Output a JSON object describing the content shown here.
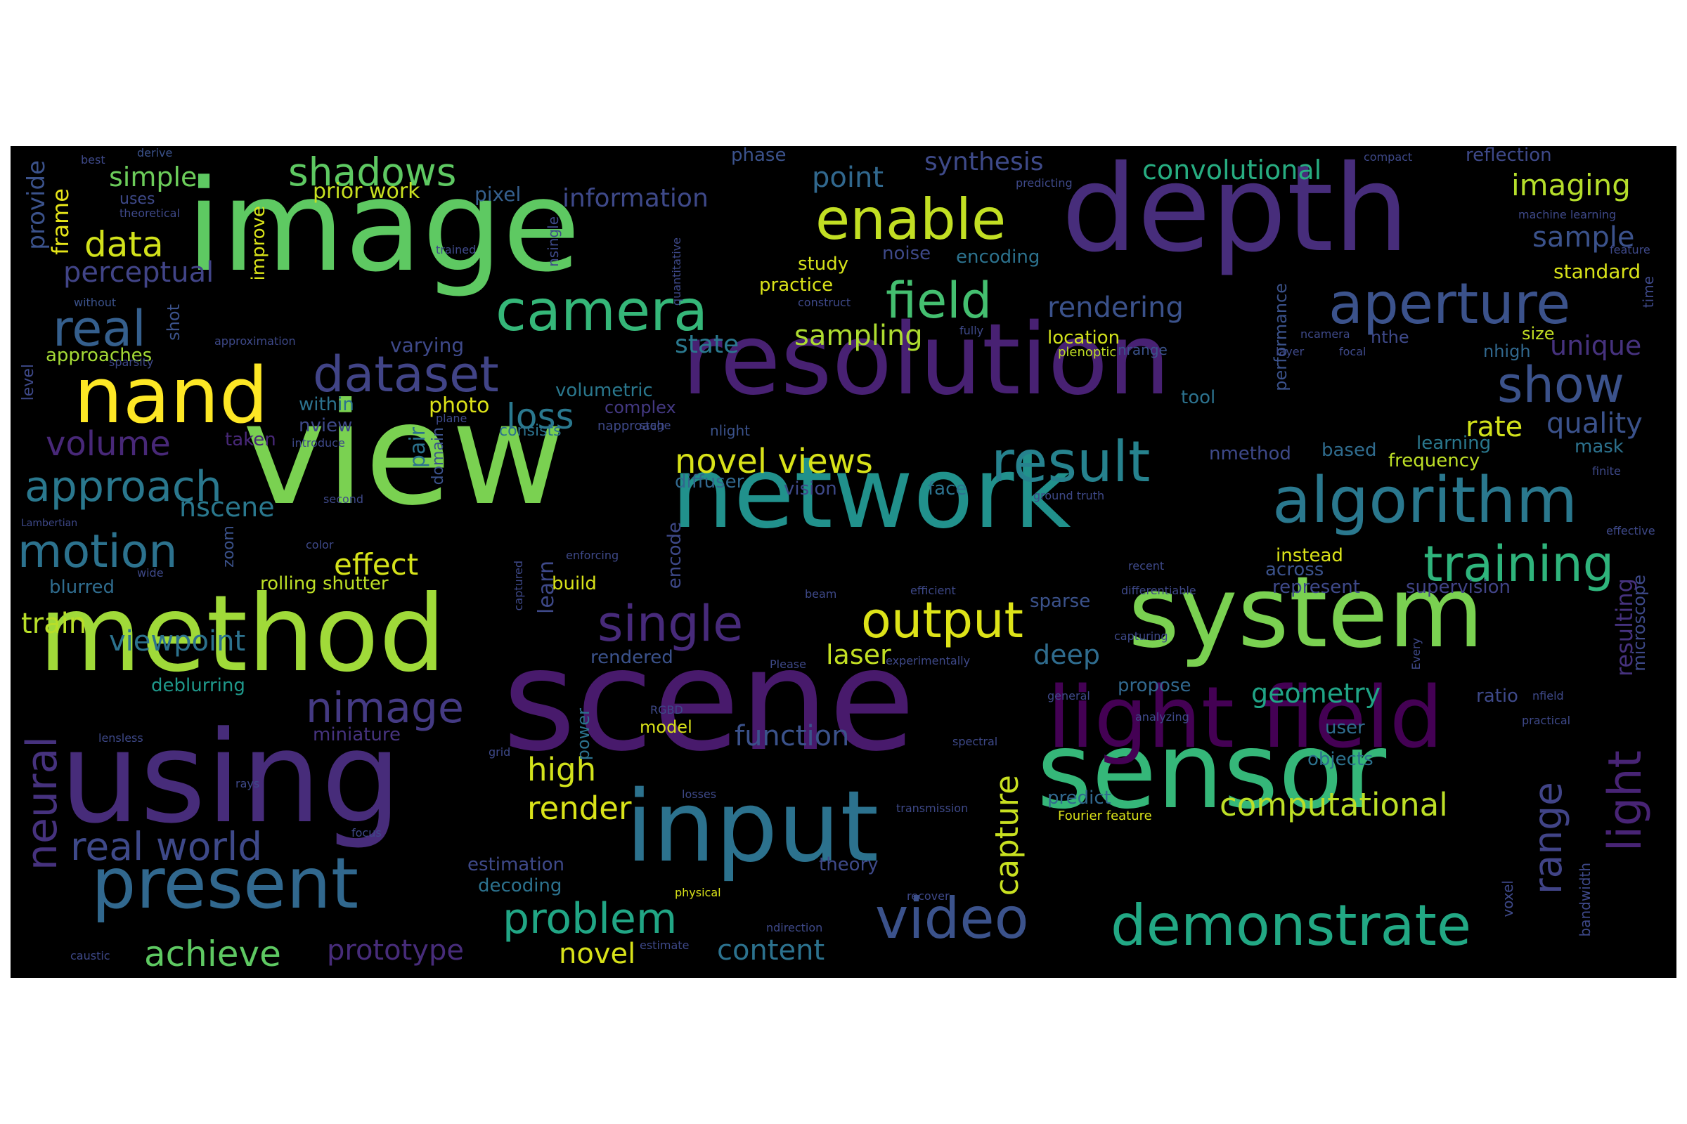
{
  "background": "#000000",
  "words": [
    {
      "text": "image",
      "color": "#5ec962"
    },
    {
      "text": "view",
      "color": "#7ad151"
    },
    {
      "text": "depth",
      "color": "#472d7b"
    },
    {
      "text": "resolution",
      "color": "#482173"
    },
    {
      "text": "network",
      "color": "#21918c"
    },
    {
      "text": "scene",
      "color": "#481a6c"
    },
    {
      "text": "using",
      "color": "#472c7a"
    },
    {
      "text": "method",
      "color": "#a0da39"
    },
    {
      "text": "system",
      "color": "#7ad151"
    },
    {
      "text": "sensor",
      "color": "#35b779"
    },
    {
      "text": "input",
      "color": "#2c728e"
    },
    {
      "text": "light field",
      "color": "#440154"
    },
    {
      "text": "nand",
      "color": "#fde725"
    },
    {
      "text": "camera",
      "color": "#35b779"
    },
    {
      "text": "present",
      "color": "#31688e"
    },
    {
      "text": "algorithm",
      "color": "#2a788e"
    },
    {
      "text": "aperture",
      "color": "#3b528b"
    },
    {
      "text": "enable",
      "color": "#c2df23"
    },
    {
      "text": "video",
      "color": "#3b528b"
    },
    {
      "text": "demonstrate",
      "color": "#22a884"
    },
    {
      "text": "training",
      "color": "#2fb47c"
    },
    {
      "text": "result",
      "color": "#26828e"
    },
    {
      "text": "field",
      "color": "#44bf70"
    },
    {
      "text": "output",
      "color": "#dde318"
    },
    {
      "text": "single",
      "color": "#472a7a"
    },
    {
      "text": "show",
      "color": "#3b528b"
    },
    {
      "text": "dataset",
      "color": "#414487"
    },
    {
      "text": "real",
      "color": "#355f8d"
    },
    {
      "text": "motion",
      "color": "#2c728e"
    },
    {
      "text": "approach",
      "color": "#2a788e"
    },
    {
      "text": "problem",
      "color": "#21a685"
    },
    {
      "text": "neural",
      "color": "#46327e"
    },
    {
      "text": "nimage",
      "color": "#443a83"
    },
    {
      "text": "real world",
      "color": "#3e4989"
    },
    {
      "text": "achieve",
      "color": "#5ec962"
    },
    {
      "text": "shadows",
      "color": "#5ec962"
    },
    {
      "text": "light",
      "color": "#482475"
    },
    {
      "text": "range",
      "color": "#414487"
    },
    {
      "text": "computational",
      "color": "#bddf26"
    },
    {
      "text": "novel views",
      "color": "#d8e219"
    },
    {
      "text": "loss",
      "color": "#2a788e"
    },
    {
      "text": "volume",
      "color": "#482878"
    },
    {
      "text": "data",
      "color": "#d2e21b"
    },
    {
      "text": "imaging",
      "color": "#b5de2b"
    },
    {
      "text": "sample",
      "color": "#3b528b"
    },
    {
      "text": "convolutional",
      "color": "#27ad81"
    },
    {
      "text": "synthesis",
      "color": "#3e4a89"
    },
    {
      "text": "point",
      "color": "#31688e"
    },
    {
      "text": "rendering",
      "color": "#3b528b"
    },
    {
      "text": "sampling",
      "color": "#addc30"
    },
    {
      "text": "perceptual",
      "color": "#414487"
    },
    {
      "text": "simple",
      "color": "#6ccd5a"
    },
    {
      "text": "information",
      "color": "#3e4989"
    },
    {
      "text": "prior work",
      "color": "#c8e020"
    },
    {
      "text": "nscene",
      "color": "#2a788e"
    },
    {
      "text": "effect",
      "color": "#d5e21a"
    },
    {
      "text": "train",
      "color": "#b8de29"
    },
    {
      "text": "viewpoint",
      "color": "#2c728e"
    },
    {
      "text": "high",
      "color": "#d2e21b"
    },
    {
      "text": "render",
      "color": "#dae319"
    },
    {
      "text": "function",
      "color": "#3b528b"
    },
    {
      "text": "prototype",
      "color": "#472c7a"
    },
    {
      "text": "content",
      "color": "#2c728e"
    },
    {
      "text": "novel",
      "color": "#d8e219"
    },
    {
      "text": "capture",
      "color": "#c8e020"
    },
    {
      "text": "geometry",
      "color": "#20a486"
    },
    {
      "text": "quality",
      "color": "#3b528b"
    },
    {
      "text": "rate",
      "color": "#d2e21b"
    },
    {
      "text": "unique",
      "color": "#46327e"
    },
    {
      "text": "standard",
      "color": "#d8e219"
    },
    {
      "text": "deep",
      "color": "#2f6c8e"
    },
    {
      "text": "laser",
      "color": "#c2df23"
    },
    {
      "text": "state",
      "color": "#2a788e"
    },
    {
      "text": "frame",
      "color": "#e5e419"
    },
    {
      "text": "provide",
      "color": "#3b528b"
    },
    {
      "text": "blurred",
      "color": "#2f6c8e"
    },
    {
      "text": "deblurring",
      "color": "#1f988b"
    },
    {
      "text": "miniature",
      "color": "#46337f"
    },
    {
      "text": "varying",
      "color": "#3e4989"
    },
    {
      "text": "approaches",
      "color": "#a5db36"
    },
    {
      "text": "within",
      "color": "#2c728e"
    },
    {
      "text": "nview",
      "color": "#3e4989"
    },
    {
      "text": "photo",
      "color": "#dde318"
    },
    {
      "text": "taken",
      "color": "#482878"
    },
    {
      "text": "pixel",
      "color": "#355f8d"
    },
    {
      "text": "phase",
      "color": "#3b528b"
    },
    {
      "text": "study",
      "color": "#d5e21a"
    },
    {
      "text": "noise",
      "color": "#3e4989"
    },
    {
      "text": "encoding",
      "color": "#2c728e"
    },
    {
      "text": "practice",
      "color": "#dae319"
    },
    {
      "text": "volumetric",
      "color": "#2a788e"
    },
    {
      "text": "complex",
      "color": "#443983"
    },
    {
      "text": "consists",
      "color": "#2c728e"
    },
    {
      "text": "napproach",
      "color": "#3e4989"
    },
    {
      "text": "nlight",
      "color": "#3b528b"
    },
    {
      "text": "diffuser",
      "color": "#31688e"
    },
    {
      "text": "vision",
      "color": "#3e4989"
    },
    {
      "text": "face",
      "color": "#2c728e"
    },
    {
      "text": "location",
      "color": "#d2e21b"
    },
    {
      "text": "plenoptic",
      "color": "#c0df25"
    },
    {
      "text": "nrange",
      "color": "#3b528b"
    },
    {
      "text": "tool",
      "color": "#2c728e"
    },
    {
      "text": "nmethod",
      "color": "#3e4989"
    },
    {
      "text": "based",
      "color": "#2f6c8e"
    },
    {
      "text": "learning",
      "color": "#2a788e"
    },
    {
      "text": "frequency",
      "color": "#bddf26"
    },
    {
      "text": "mask",
      "color": "#2c728e"
    },
    {
      "text": "size",
      "color": "#c2df23"
    },
    {
      "text": "nthe",
      "color": "#3e4989"
    },
    {
      "text": "nhigh",
      "color": "#31688e"
    },
    {
      "text": "reflection",
      "color": "#3e4989"
    },
    {
      "text": "instead",
      "color": "#dae319"
    },
    {
      "text": "across",
      "color": "#3b528b"
    },
    {
      "text": "represent",
      "color": "#3e4989"
    },
    {
      "text": "supervision",
      "color": "#414487"
    },
    {
      "text": "sparse",
      "color": "#3b528b"
    },
    {
      "text": "propose",
      "color": "#31688e"
    },
    {
      "text": "ratio",
      "color": "#3e4989"
    },
    {
      "text": "user",
      "color": "#2f6c8e"
    },
    {
      "text": "objects",
      "color": "#2c728e"
    },
    {
      "text": "predict",
      "color": "#31688e"
    },
    {
      "text": "theory",
      "color": "#3e4989"
    },
    {
      "text": "estimation",
      "color": "#3e4989"
    },
    {
      "text": "decoding",
      "color": "#2c728e"
    },
    {
      "text": "model",
      "color": "#dae319"
    },
    {
      "text": "build",
      "color": "#d8e219"
    },
    {
      "text": "learn",
      "color": "#3e4989"
    },
    {
      "text": "rendered",
      "color": "#3b528b"
    },
    {
      "text": "encode",
      "color": "#3e4989"
    },
    {
      "text": "power",
      "color": "#2c728e"
    },
    {
      "text": "resulting",
      "color": "#46327e"
    },
    {
      "text": "microscope",
      "color": "#3e4989"
    },
    {
      "text": "performance",
      "color": "#3b528b"
    },
    {
      "text": "bandwidth",
      "color": "#3e4989"
    },
    {
      "text": "voxel",
      "color": "#3e4989"
    },
    {
      "text": "improve",
      "color": "#dae319"
    },
    {
      "text": "nsingle",
      "color": "#3e4989"
    },
    {
      "text": "pair",
      "color": "#2c728e"
    },
    {
      "text": "domain",
      "color": "#3b528b"
    },
    {
      "text": "shot",
      "color": "#3b528b"
    },
    {
      "text": "level",
      "color": "#3e4989"
    },
    {
      "text": "zoom",
      "color": "#3b528b"
    },
    {
      "text": "time",
      "color": "#3e4989"
    },
    {
      "text": "uses",
      "color": "#3e4989"
    },
    {
      "text": "best",
      "color": "#3e4989"
    },
    {
      "text": "derive",
      "color": "#3b528b"
    },
    {
      "text": "theoretical",
      "color": "#3e4989"
    },
    {
      "text": "without",
      "color": "#3b528b"
    },
    {
      "text": "trained",
      "color": "#3e4989"
    },
    {
      "text": "predicting",
      "color": "#3e4989"
    },
    {
      "text": "compact",
      "color": "#3e4989"
    },
    {
      "text": "machine learning",
      "color": "#3e4989"
    },
    {
      "text": "feature",
      "color": "#3e4989"
    },
    {
      "text": "construct",
      "color": "#3e4989"
    },
    {
      "text": "fully",
      "color": "#3e4989"
    },
    {
      "text": "ncamera",
      "color": "#3e4989"
    },
    {
      "text": "layer",
      "color": "#3e4989"
    },
    {
      "text": "focal",
      "color": "#3e4989"
    },
    {
      "text": "quantitative",
      "color": "#3e4989"
    },
    {
      "text": "approximation",
      "color": "#3e4989"
    },
    {
      "text": "sparsity",
      "color": "#3e4989"
    },
    {
      "text": "plane",
      "color": "#3e4989"
    },
    {
      "text": "stage",
      "color": "#3e4989"
    },
    {
      "text": "introduce",
      "color": "#3e4989"
    },
    {
      "text": "second",
      "color": "#3e4989"
    },
    {
      "text": "Lambertian",
      "color": "#3e4989"
    },
    {
      "text": "color",
      "color": "#3e4989"
    },
    {
      "text": "wide",
      "color": "#3e4989"
    },
    {
      "text": "rolling shutter",
      "color": "#bddf26"
    },
    {
      "text": "enforcing",
      "color": "#3e4989"
    },
    {
      "text": "captured",
      "color": "#3e4989"
    },
    {
      "text": "beam",
      "color": "#3e4989"
    },
    {
      "text": "efficient",
      "color": "#3e4989"
    },
    {
      "text": "recent",
      "color": "#3e4989"
    },
    {
      "text": "differentiable",
      "color": "#3e4989"
    },
    {
      "text": "ground truth",
      "color": "#3e4989"
    },
    {
      "text": "finite",
      "color": "#3e4989"
    },
    {
      "text": "effective",
      "color": "#3e4989"
    },
    {
      "text": "capturing",
      "color": "#3e4989"
    },
    {
      "text": "experimentally",
      "color": "#3e4989"
    },
    {
      "text": "Please",
      "color": "#3e4989"
    },
    {
      "text": "Every",
      "color": "#3e4989"
    },
    {
      "text": "general",
      "color": "#3e4989"
    },
    {
      "text": "nfield",
      "color": "#3e4989"
    },
    {
      "text": "analyzing",
      "color": "#3e4989"
    },
    {
      "text": "practical",
      "color": "#3e4989"
    },
    {
      "text": "RGBD",
      "color": "#3e4989"
    },
    {
      "text": "grid",
      "color": "#3e4989"
    },
    {
      "text": "lensless",
      "color": "#3e4989"
    },
    {
      "text": "spectral",
      "color": "#3e4989"
    },
    {
      "text": "rays",
      "color": "#3e4989"
    },
    {
      "text": "losses",
      "color": "#3e4989"
    },
    {
      "text": "transmission",
      "color": "#3e4989"
    },
    {
      "text": "focus",
      "color": "#3e4989"
    },
    {
      "text": "Fourier feature",
      "color": "#dae319"
    },
    {
      "text": "physical",
      "color": "#dae319"
    },
    {
      "text": "recover",
      "color": "#3e4989"
    },
    {
      "text": "ndirection",
      "color": "#3e4989"
    },
    {
      "text": "caustic",
      "color": "#3e4989"
    },
    {
      "text": "estimate",
      "color": "#3e4989"
    }
  ]
}
